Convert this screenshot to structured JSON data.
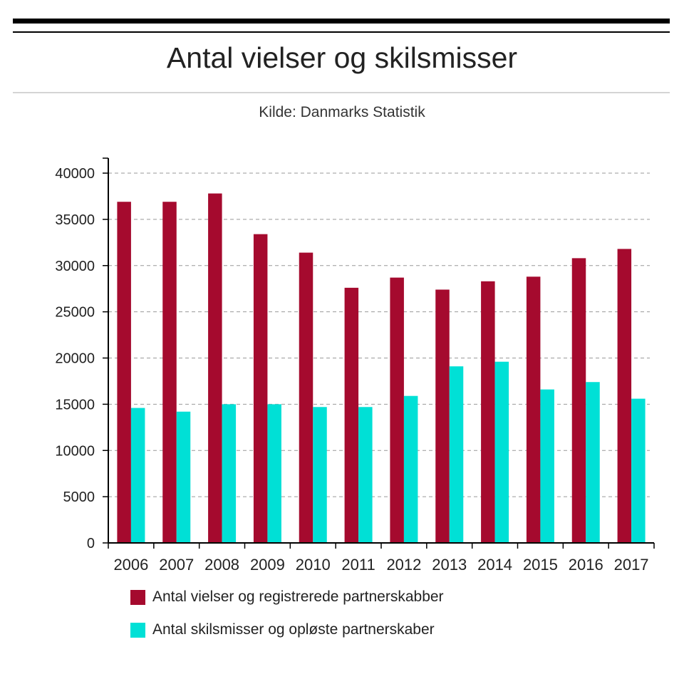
{
  "title": "Antal vielser og skilsmisser",
  "subtitle": "Kilde: Danmarks Statistik",
  "chart_data": {
    "type": "bar",
    "title": "Antal vielser og skilsmisser",
    "subtitle": "Kilde: Danmarks Statistik",
    "xlabel": "",
    "ylabel": "",
    "ylim": [
      0,
      40000
    ],
    "yticks": [
      0,
      5000,
      10000,
      15000,
      20000,
      25000,
      30000,
      35000,
      40000
    ],
    "grid": true,
    "legend_position": "bottom",
    "categories": [
      "2006",
      "2007",
      "2008",
      "2009",
      "2010",
      "2011",
      "2012",
      "2013",
      "2014",
      "2015",
      "2016",
      "2017"
    ],
    "series": [
      {
        "name": "Antal vielser og registrerede partnerskabber",
        "color": "#a50a2e",
        "values": [
          36900,
          36900,
          37800,
          33400,
          31400,
          27600,
          28700,
          27400,
          28300,
          28800,
          30800,
          31800
        ]
      },
      {
        "name": "Antal skilsmisser og opløste partnerskaber",
        "color": "#00e0d6",
        "values": [
          14600,
          14200,
          15000,
          15000,
          14700,
          14700,
          15900,
          19100,
          19600,
          16600,
          17400,
          15600
        ]
      }
    ]
  }
}
